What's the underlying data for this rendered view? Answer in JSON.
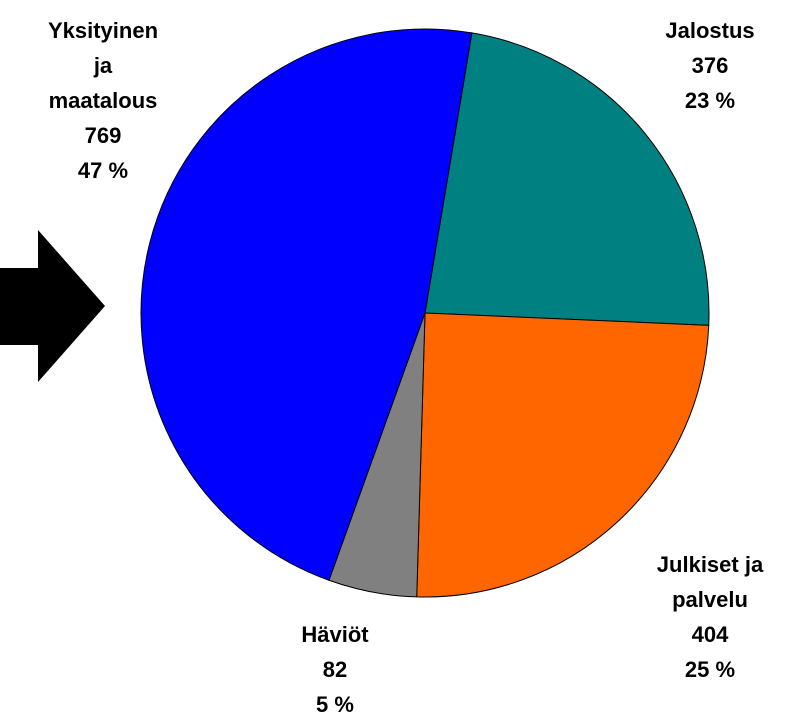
{
  "chart_data": {
    "type": "pie",
    "categories": [
      [
        "Jalostus"
      ],
      [
        "Julkiset ja",
        "palvelu"
      ],
      [
        "Häviöt"
      ],
      [
        "Yksityinen",
        "ja",
        "maatalous"
      ]
    ],
    "values": [
      376,
      404,
      82,
      769
    ],
    "percent_labels": [
      "23 %",
      "25 %",
      "5 %",
      "47 %"
    ],
    "colors": [
      "#008080",
      "#ff6600",
      "#808080",
      "#0000ff"
    ]
  }
}
